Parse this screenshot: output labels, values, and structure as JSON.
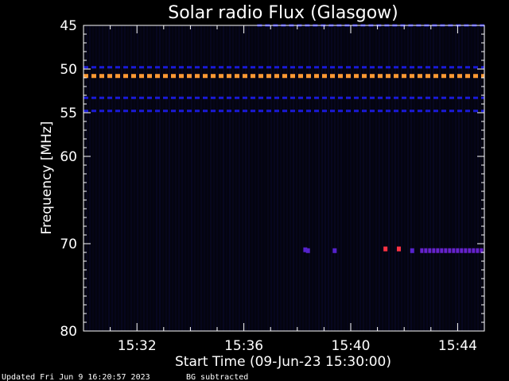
{
  "chart_data": {
    "type": "heatmap",
    "title": "Solar radio Flux (Glasgow)",
    "xlabel": "Start Time (09-Jun-23 15:30:00)",
    "ylabel": "Frequency [MHz]",
    "x_tick_labels": [
      "15:32",
      "15:36",
      "15:40",
      "15:44"
    ],
    "x_ticks_minutes": [
      2,
      6,
      10,
      14
    ],
    "x_range_minutes": [
      0,
      15
    ],
    "y_tick_labels": [
      "45",
      "50",
      "55",
      "60",
      "70",
      "80"
    ],
    "y_ticks": [
      45,
      50,
      55,
      60,
      70,
      80
    ],
    "y_range": [
      45,
      80
    ],
    "y_inverted": true,
    "bands": [
      {
        "freq": 45.0,
        "color": "#1a1ad8",
        "x_start_minutes": 6.5,
        "x_end_minutes": 15,
        "dash": true
      },
      {
        "freq": 49.8,
        "color": "#1a1ad8",
        "x_start_minutes": 0,
        "x_end_minutes": 15,
        "dash": true
      },
      {
        "freq": 50.8,
        "color": "#ff9933",
        "x_start_minutes": 0,
        "x_end_minutes": 15,
        "dash": true
      },
      {
        "freq": 53.3,
        "color": "#1a1ad8",
        "x_start_minutes": 0,
        "x_end_minutes": 15,
        "dash": true
      },
      {
        "freq": 54.8,
        "color": "#1a1ad8",
        "x_start_minutes": 0,
        "x_end_minutes": 15,
        "dash": true
      }
    ],
    "spots": [
      {
        "minute": 8.3,
        "freq": 70.7,
        "color": "#5522cc"
      },
      {
        "minute": 8.4,
        "freq": 70.8,
        "color": "#5522cc"
      },
      {
        "minute": 9.4,
        "freq": 70.8,
        "color": "#5522cc"
      },
      {
        "minute": 11.3,
        "freq": 70.6,
        "color": "#ff3344"
      },
      {
        "minute": 11.8,
        "freq": 70.6,
        "color": "#ff3344"
      },
      {
        "minute": 12.3,
        "freq": 70.8,
        "color": "#5522cc"
      }
    ],
    "segments": [
      {
        "freq": 70.8,
        "color": "#6622cc",
        "x_start_minutes": 12.6,
        "x_end_minutes": 15
      }
    ]
  },
  "footer": {
    "updated": "Updated Fri Jun  9 16:20:57 2023",
    "note": "BG subtracted"
  },
  "colors": {
    "background": "#000000",
    "plot_background": "#04040f",
    "axis": "#ffffff"
  }
}
